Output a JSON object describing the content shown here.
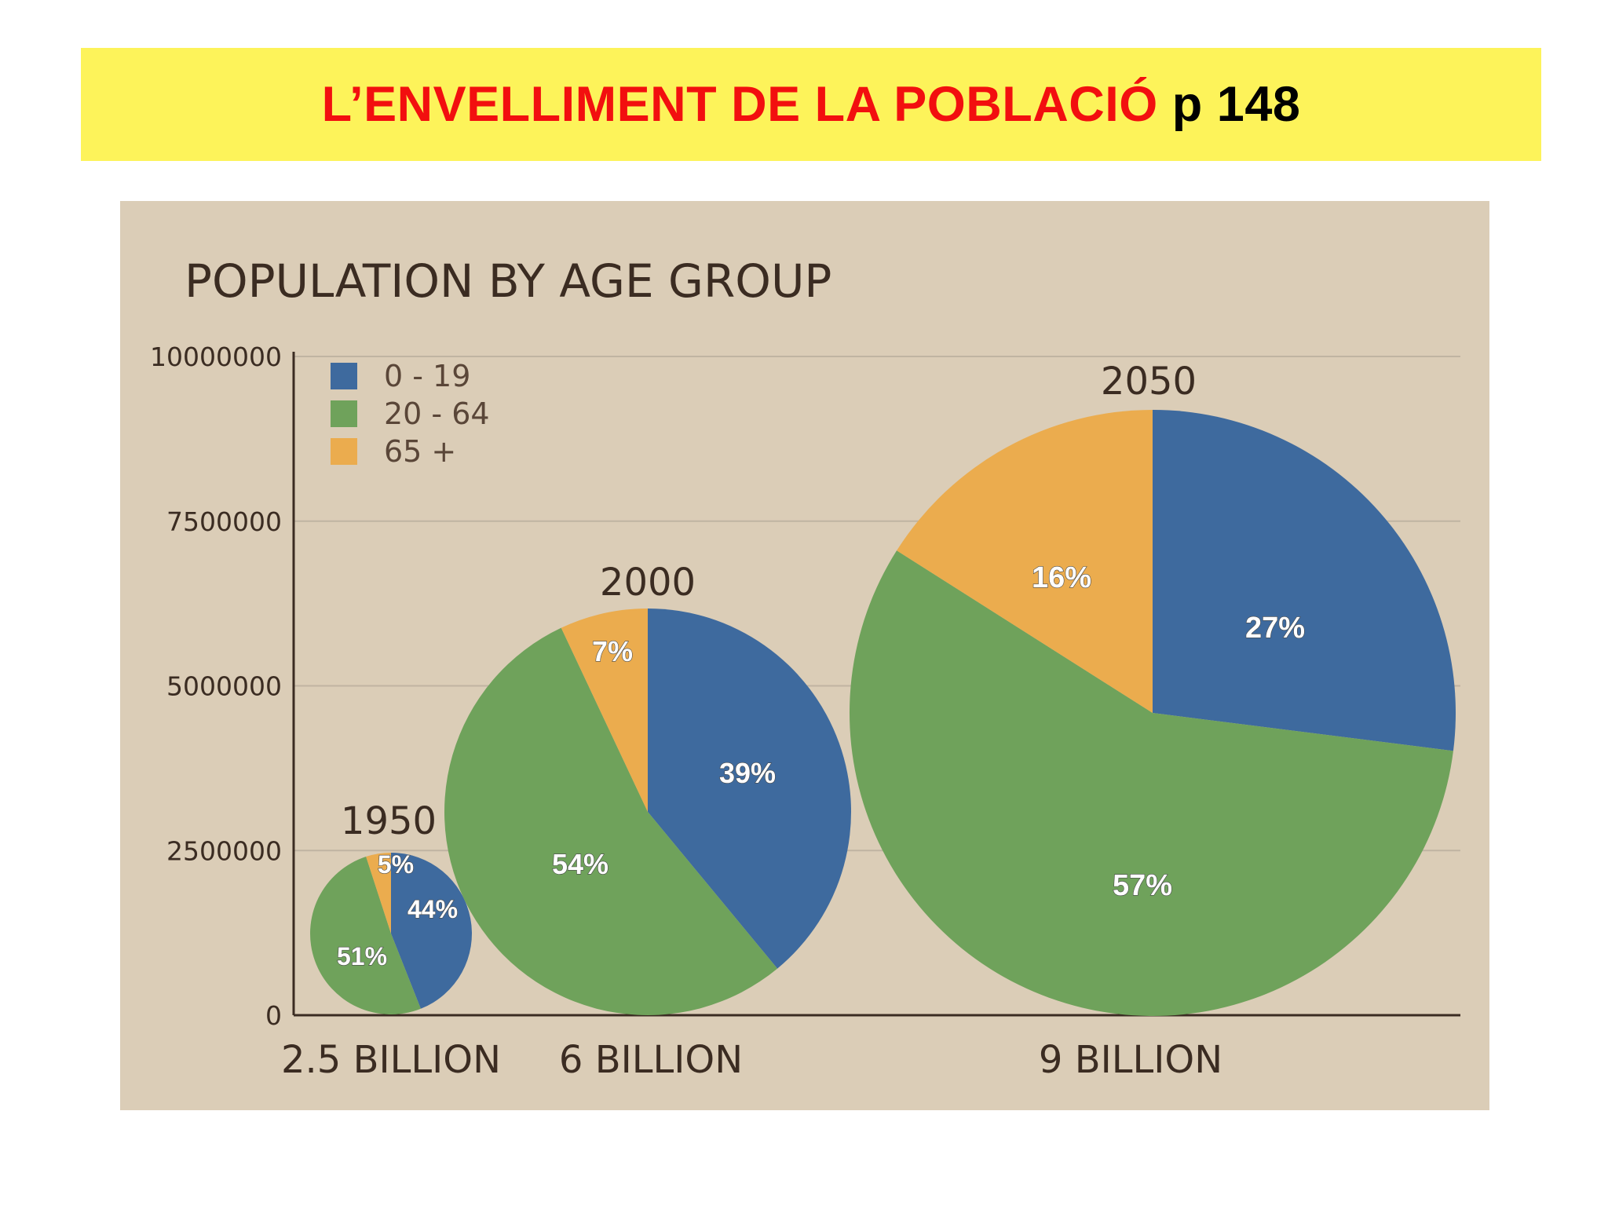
{
  "slide": {
    "title_main": "L’ENVELLIMENT DE LA POBLACIÓ",
    "title_page": "p 148"
  },
  "chart_data": {
    "type": "pie",
    "title": "POPULATION BY AGE GROUP",
    "y_ticks": [
      "0",
      "2500000",
      "5000000",
      "7500000",
      "10000000"
    ],
    "ylim": [
      0,
      10000000
    ],
    "legend": {
      "placement": "top-left",
      "entries": [
        {
          "label": "0   - 19",
          "color": "#3e6a9e"
        },
        {
          "label": "20 - 64",
          "color": "#6fa25b"
        },
        {
          "label": "65 +",
          "color": "#ebac4e"
        }
      ]
    },
    "pies": [
      {
        "year": "1950",
        "category": "2.5 BILLION",
        "slices": [
          44,
          51,
          5
        ],
        "labels": [
          "44%",
          "51%",
          "5%"
        ]
      },
      {
        "year": "2000",
        "category": "6 BILLION",
        "slices": [
          39,
          54,
          7
        ],
        "labels": [
          "39%",
          "54%",
          "7%"
        ]
      },
      {
        "year": "2050",
        "category": "9 BILLION",
        "slices": [
          27,
          57,
          16
        ],
        "labels": [
          "27%",
          "57%",
          "16%"
        ]
      }
    ]
  }
}
